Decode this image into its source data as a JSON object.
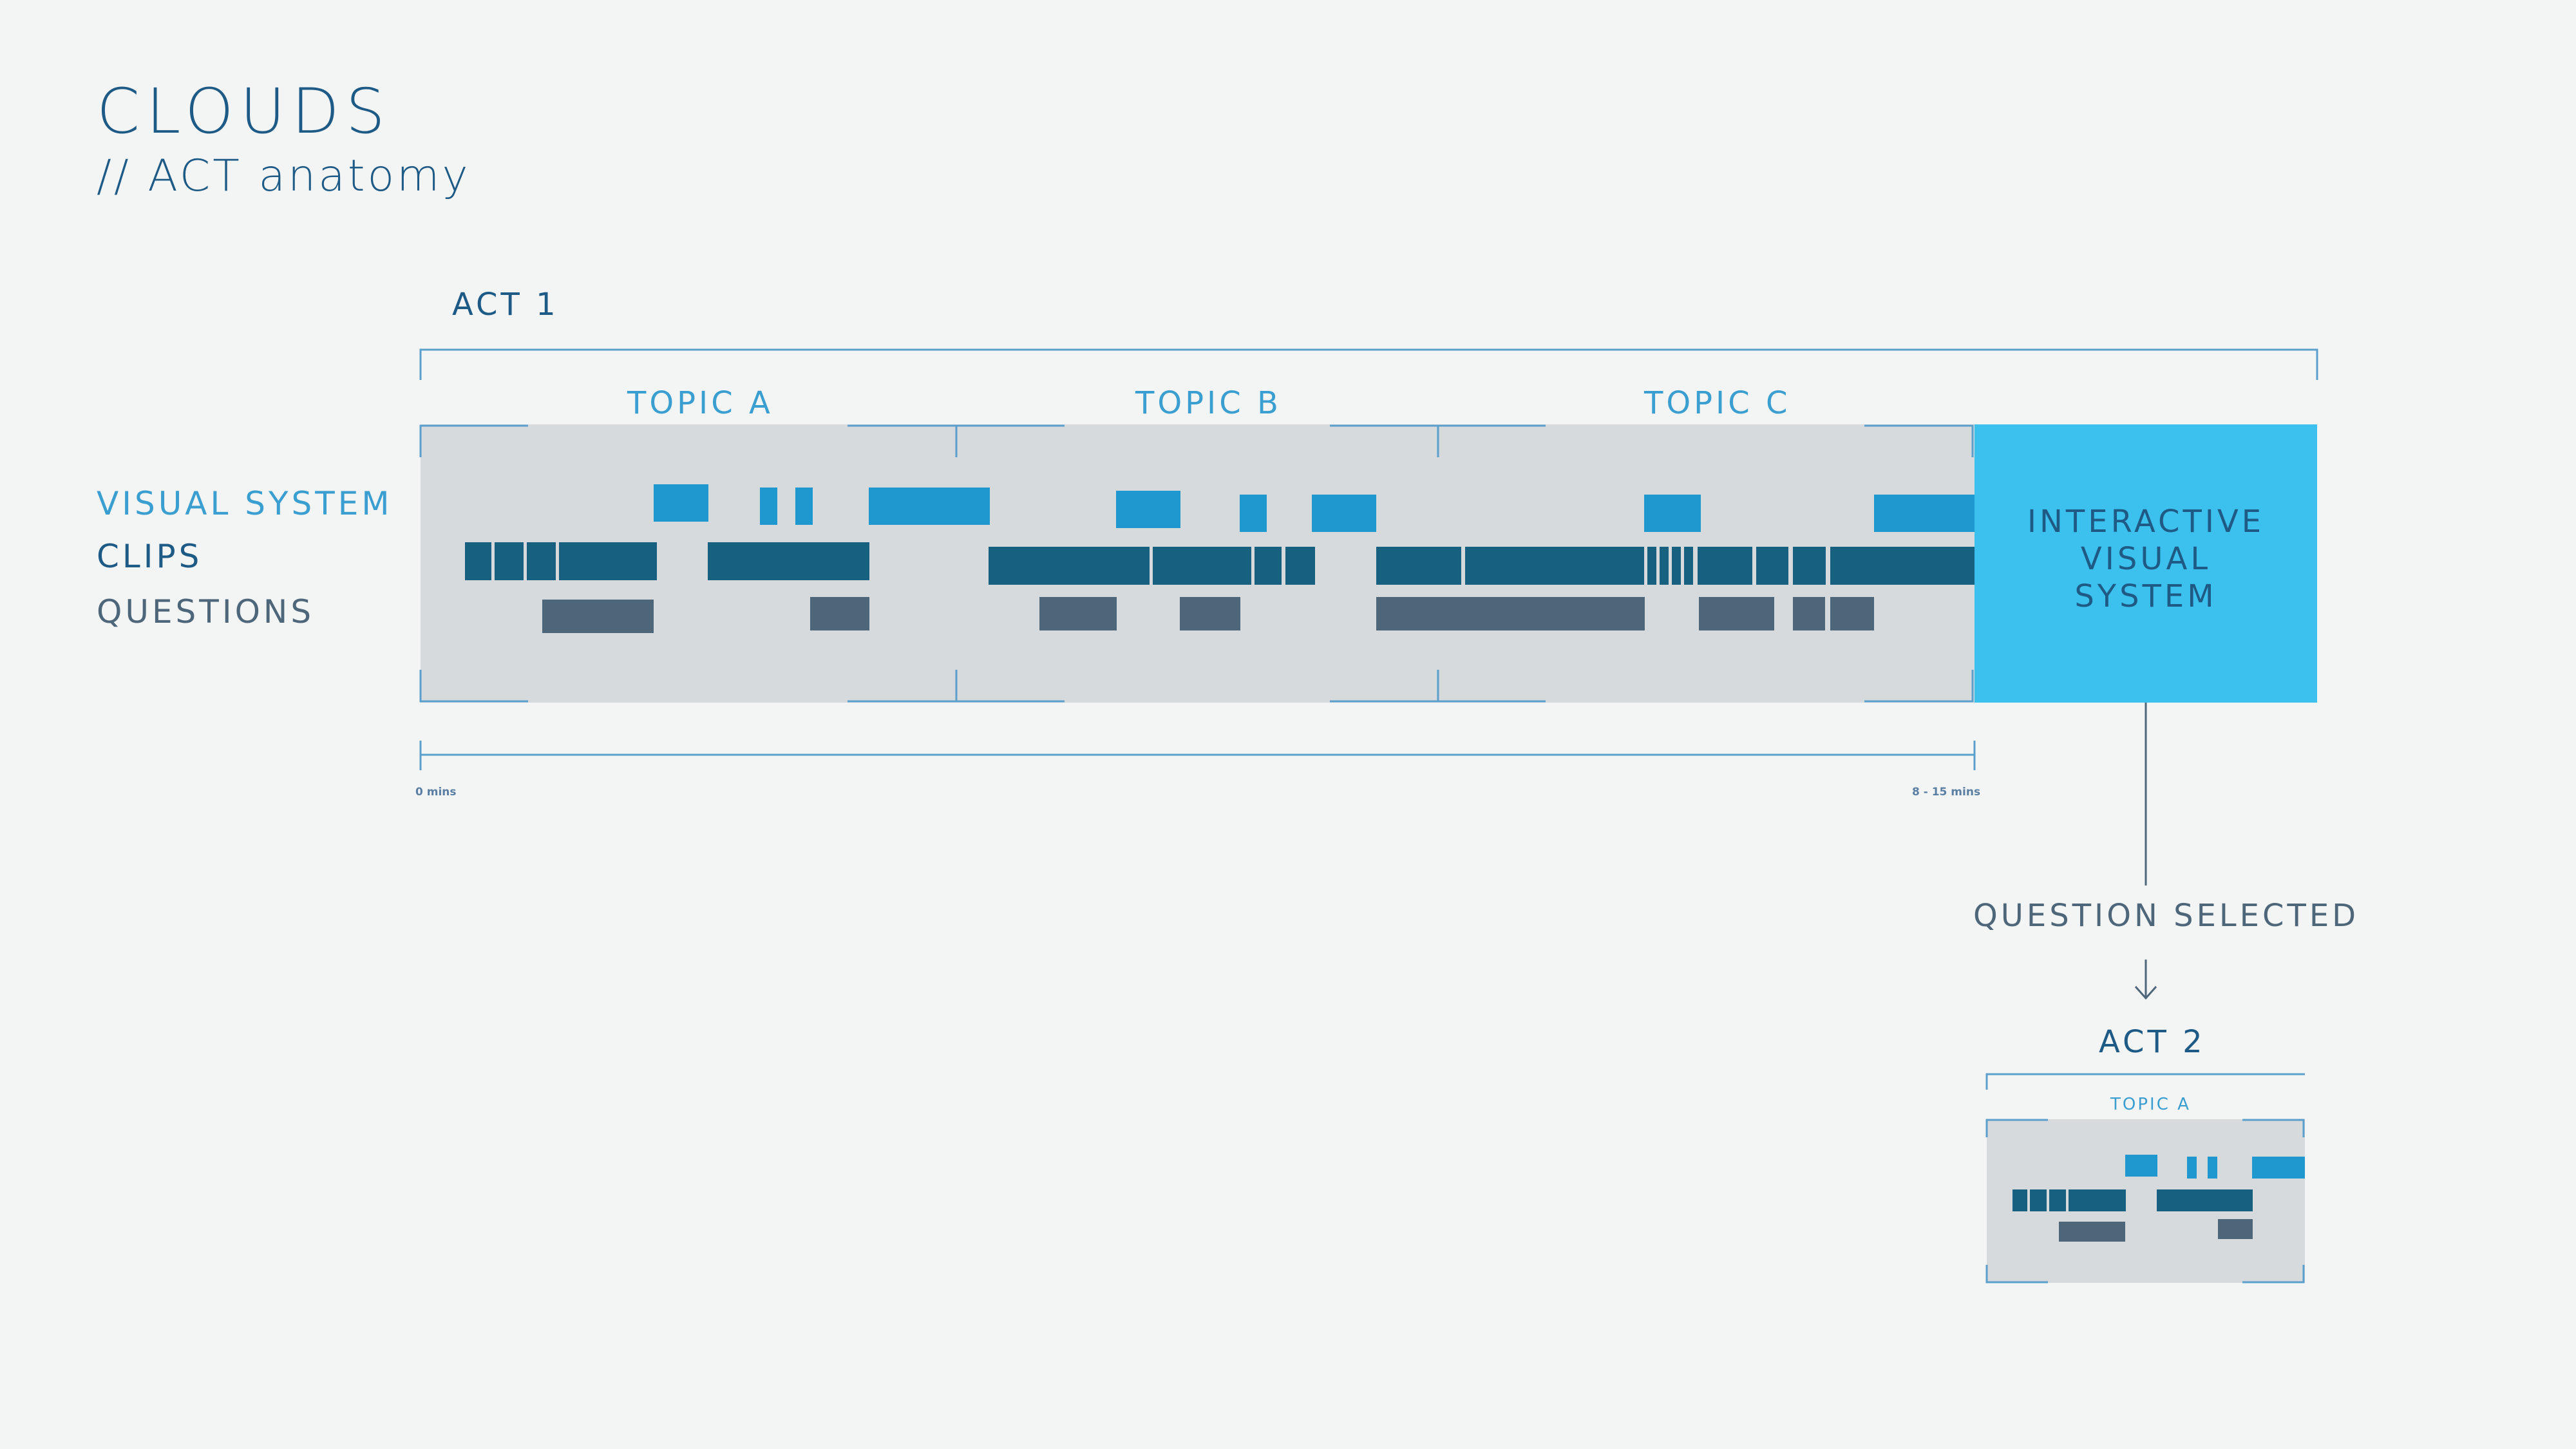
{
  "header": {
    "title": "CLOUDS",
    "subtitle": "// ACT anatomy"
  },
  "legend": {
    "visual_system": "VISUAL SYSTEM",
    "clips": "CLIPS",
    "questions": "QUESTIONS"
  },
  "act1": {
    "label": "ACT 1",
    "topics": [
      "TOPIC A",
      "TOPIC B",
      "TOPIC C"
    ],
    "interactive": {
      "line1": "INTERACTIVE",
      "line2": "VISUAL",
      "line3": "SYSTEM"
    },
    "timeline": {
      "start": "0 mins",
      "end": "8 - 15 mins"
    }
  },
  "transition": {
    "label": "QUESTION SELECTED"
  },
  "act2": {
    "label": "ACT 2",
    "topic": "TOPIC A"
  },
  "colors": {
    "background": "#f3f4f4",
    "panel": "#d7dadd",
    "visual_system": "#1f98cf",
    "clips": "#17607f",
    "questions": "#4d6679",
    "interactive": "#3cc1ef",
    "text_dark": "#1e5a86",
    "text_light": "#3a9fd0",
    "line": "#5b9fcc"
  }
}
